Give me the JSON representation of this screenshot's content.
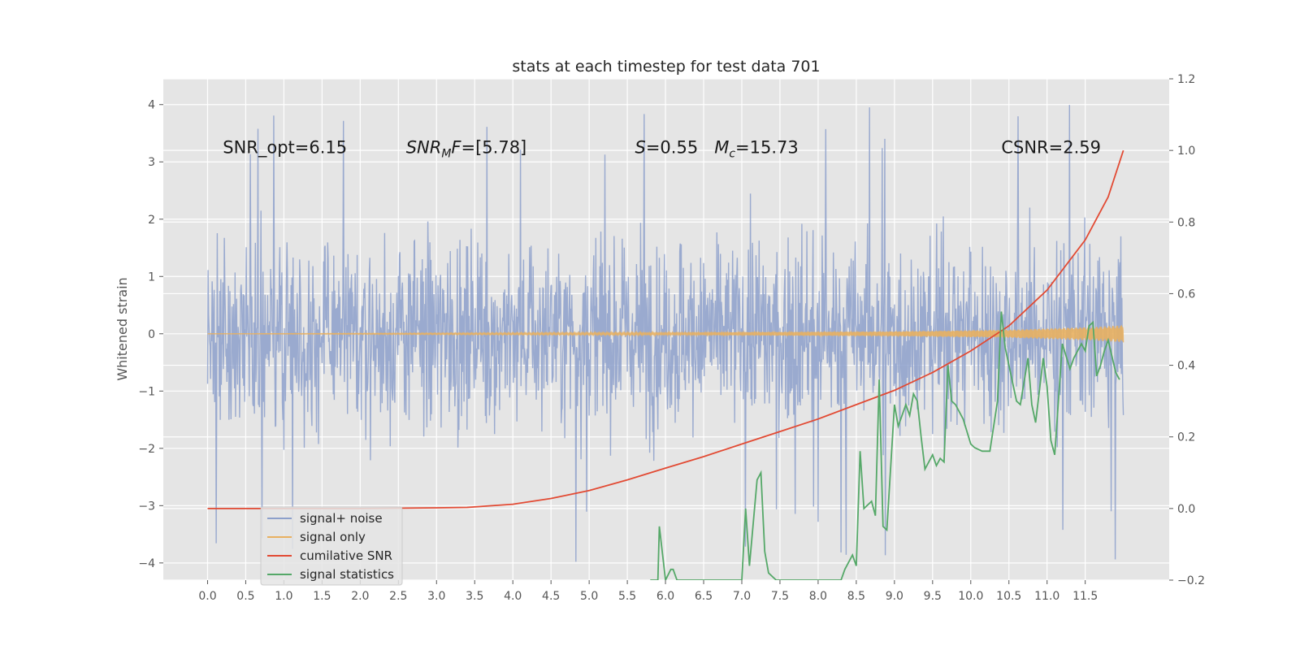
{
  "chart_data": {
    "type": "line",
    "title": "stats at each timestep for test data 701",
    "ylabel": "Whitened strain",
    "xlabel": "",
    "xlim": [
      -0.58,
      12.6
    ],
    "ylim": [
      -4.3,
      4.45
    ],
    "y2lim": [
      -0.2,
      1.2
    ],
    "grid": true,
    "legend_position": "lower-left",
    "x_ticks": [
      0.0,
      0.5,
      1.0,
      1.5,
      2.0,
      2.5,
      3.0,
      3.5,
      4.0,
      4.5,
      5.0,
      5.5,
      6.0,
      6.5,
      7.0,
      7.5,
      8.0,
      8.5,
      9.0,
      9.5,
      10.0,
      10.5,
      11.0,
      11.5
    ],
    "x_tick_labels": [
      "0.0",
      "0.5",
      "1.0",
      "1.5",
      "2.0",
      "2.5",
      "3.0",
      "3.5",
      "4.0",
      "4.5",
      "5.0",
      "5.5",
      "6.0",
      "6.5",
      "7.0",
      "7.5",
      "8.0",
      "8.5",
      "9.0",
      "9.5",
      "10.0",
      "10.5",
      "11.0",
      "11.5"
    ],
    "y_ticks": [
      -4,
      -3,
      -2,
      -1,
      0,
      1,
      2,
      3,
      4
    ],
    "y_tick_labels": [
      "−4",
      "−3",
      "−2",
      "−1",
      "0",
      "1",
      "2",
      "3",
      "4"
    ],
    "y2_ticks": [
      -0.2,
      0.0,
      0.2,
      0.4,
      0.6,
      0.8,
      1.0,
      1.2
    ],
    "y2_tick_labels": [
      "−0.2",
      "0.0",
      "0.2",
      "0.4",
      "0.6",
      "0.8",
      "1.0",
      "1.2"
    ],
    "annotations": [
      {
        "text": "SNR_opt=6.15",
        "x": 0.2,
        "y": 3.15
      },
      {
        "text": "SNR_MF=[5.78]",
        "x": 2.6,
        "y": 3.15
      },
      {
        "text": "S=0.55   M_c=15.73",
        "x": 5.6,
        "y": 3.15
      },
      {
        "text": "CSNR=2.59",
        "x": 10.4,
        "y": 3.15
      }
    ],
    "series": [
      {
        "name": "signal+ noise",
        "axis": "left",
        "color": "#8da0cb",
        "x_range": [
          0.0,
          12.0
        ],
        "style": "dense noise",
        "envelope_y": [
          -2.5,
          2.5
        ],
        "peak_y": [
          -4.0,
          4.1
        ]
      },
      {
        "name": "signal only",
        "axis": "left",
        "color": "#e8b060",
        "x_range": [
          0.0,
          12.0
        ],
        "style": "chirp",
        "amplitude_points": [
          [
            0.0,
            0.0
          ],
          [
            6.0,
            0.02
          ],
          [
            9.0,
            0.04
          ],
          [
            10.5,
            0.07
          ],
          [
            11.6,
            0.12
          ],
          [
            12.0,
            0.15
          ]
        ]
      },
      {
        "name": "cumilative SNR",
        "axis": "right",
        "color": "#e24a33",
        "x": [
          0.0,
          1.0,
          2.0,
          3.0,
          3.4,
          4.0,
          4.5,
          5.0,
          5.5,
          6.0,
          6.5,
          7.0,
          7.5,
          8.0,
          8.5,
          9.0,
          9.5,
          10.0,
          10.5,
          11.0,
          11.5,
          11.8,
          12.0
        ],
        "values": [
          0.0,
          0.0,
          0.0,
          0.002,
          0.003,
          0.012,
          0.028,
          0.05,
          0.08,
          0.113,
          0.145,
          0.18,
          0.215,
          0.25,
          0.29,
          0.33,
          0.38,
          0.44,
          0.51,
          0.61,
          0.75,
          0.87,
          1.0
        ]
      },
      {
        "name": "signal statistics",
        "axis": "right",
        "color": "#55a868",
        "x": [
          5.8,
          5.9,
          5.92,
          6.0,
          6.07,
          6.1,
          6.15,
          6.9,
          6.95,
          7.0,
          7.05,
          7.1,
          7.15,
          7.2,
          7.25,
          7.3,
          7.35,
          7.45,
          8.3,
          8.35,
          8.45,
          8.5,
          8.55,
          8.6,
          8.7,
          8.75,
          8.8,
          8.85,
          8.9,
          9.0,
          9.05,
          9.1,
          9.15,
          9.2,
          9.25,
          9.3,
          9.35,
          9.4,
          9.5,
          9.55,
          9.6,
          9.65,
          9.7,
          9.75,
          9.8,
          9.9,
          10.0,
          10.05,
          10.15,
          10.25,
          10.35,
          10.4,
          10.45,
          10.55,
          10.6,
          10.65,
          10.75,
          10.8,
          10.85,
          10.95,
          11.0,
          11.05,
          11.1,
          11.2,
          11.3,
          11.35,
          11.45,
          11.5,
          11.55,
          11.6,
          11.65,
          11.7,
          11.75,
          11.8,
          11.9,
          11.95
        ],
        "values": [
          -0.2,
          -0.2,
          -0.05,
          -0.2,
          -0.17,
          -0.17,
          -0.2,
          -0.2,
          -0.2,
          -0.2,
          0.0,
          -0.16,
          -0.04,
          0.08,
          0.1,
          -0.12,
          -0.18,
          -0.2,
          -0.2,
          -0.17,
          -0.13,
          -0.16,
          0.16,
          0.0,
          0.02,
          -0.02,
          0.36,
          -0.05,
          -0.06,
          0.29,
          0.23,
          0.26,
          0.29,
          0.26,
          0.32,
          0.3,
          0.2,
          0.11,
          0.15,
          0.12,
          0.14,
          0.13,
          0.4,
          0.3,
          0.29,
          0.25,
          0.18,
          0.17,
          0.16,
          0.16,
          0.3,
          0.55,
          0.45,
          0.35,
          0.3,
          0.29,
          0.42,
          0.29,
          0.24,
          0.42,
          0.34,
          0.19,
          0.15,
          0.46,
          0.39,
          0.42,
          0.46,
          0.44,
          0.51,
          0.52,
          0.37,
          0.4,
          0.44,
          0.47,
          0.38,
          0.36
        ]
      }
    ]
  }
}
